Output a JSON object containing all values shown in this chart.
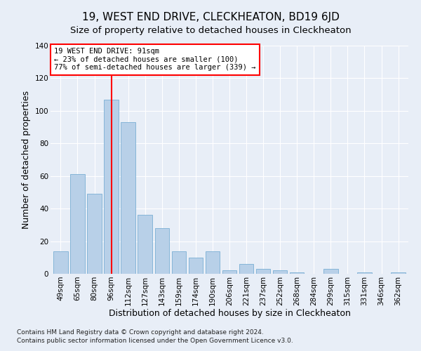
{
  "title": "19, WEST END DRIVE, CLECKHEATON, BD19 6JD",
  "subtitle": "Size of property relative to detached houses in Cleckheaton",
  "xlabel": "Distribution of detached houses by size in Cleckheaton",
  "ylabel": "Number of detached properties",
  "footer1": "Contains HM Land Registry data © Crown copyright and database right 2024.",
  "footer2": "Contains public sector information licensed under the Open Government Licence v3.0.",
  "categories": [
    "49sqm",
    "65sqm",
    "80sqm",
    "96sqm",
    "112sqm",
    "127sqm",
    "143sqm",
    "159sqm",
    "174sqm",
    "190sqm",
    "206sqm",
    "221sqm",
    "237sqm",
    "252sqm",
    "268sqm",
    "284sqm",
    "299sqm",
    "315sqm",
    "331sqm",
    "346sqm",
    "362sqm"
  ],
  "values": [
    14,
    61,
    49,
    107,
    93,
    36,
    28,
    14,
    10,
    14,
    2,
    6,
    3,
    2,
    1,
    0,
    3,
    0,
    1,
    0,
    1
  ],
  "bar_color": "#b8d0e8",
  "bar_edge_color": "#7aafd4",
  "vline_position": 3.5,
  "vline_color": "red",
  "annotation_text": "19 WEST END DRIVE: 91sqm\n← 23% of detached houses are smaller (100)\n77% of semi-detached houses are larger (339) →",
  "annotation_box_color": "white",
  "annotation_box_edge": "red",
  "ylim": [
    0,
    140
  ],
  "yticks": [
    0,
    20,
    40,
    60,
    80,
    100,
    120,
    140
  ],
  "bg_color": "#e8eef7",
  "plot_bg_color": "#e8eef7",
  "title_fontsize": 11,
  "subtitle_fontsize": 9.5,
  "axis_label_fontsize": 9,
  "tick_fontsize": 7.5,
  "footer_fontsize": 6.5,
  "annotation_fontsize": 7.5
}
